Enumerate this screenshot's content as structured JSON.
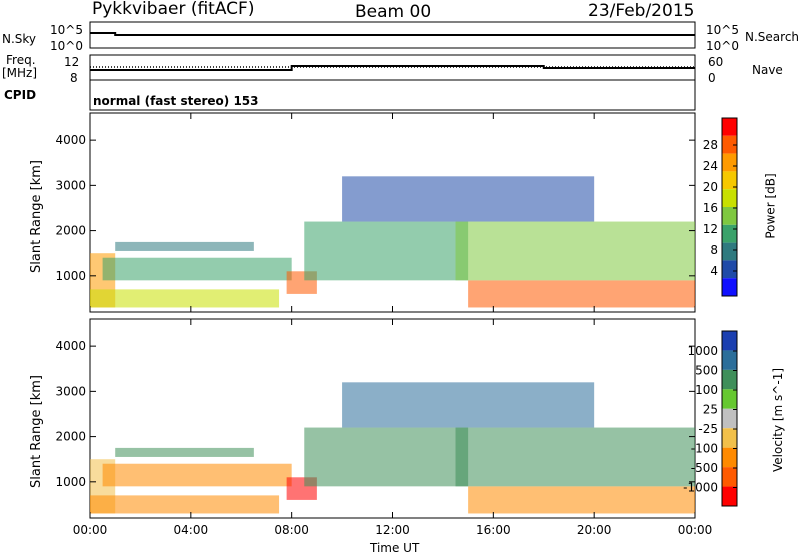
{
  "header": {
    "station": "Pykkvibaer (fitACF)",
    "beam": "Beam 00",
    "date": "23/Feb/2015"
  },
  "panels": {
    "nsky_label": "N.Sky",
    "nsky_ticks": [
      "10^5",
      "10^0"
    ],
    "nsearch_label": "N.Search",
    "nsearch_ticks": [
      "10^5",
      "10^0"
    ],
    "freq_label_1": "Freq.",
    "freq_label_2": "[MHz]",
    "freq_ticks": [
      "12",
      "8"
    ],
    "nave_label": "Nave",
    "nave_ticks": [
      "60",
      "0"
    ],
    "cpid_label": "CPID",
    "cpid_text": "normal (fast stereo) 153"
  },
  "power_colorbar": {
    "label": "Power [dB]",
    "ticks": [
      "28",
      "24",
      "20",
      "16",
      "12",
      "8",
      "4"
    ],
    "colors": [
      "#ff0000",
      "#ff5a00",
      "#ff9a00",
      "#f6c800",
      "#c8e000",
      "#7fc840",
      "#3aa26a",
      "#2f7a7f",
      "#1f4aa8",
      "#1010ff"
    ]
  },
  "velocity_colorbar": {
    "label": "Velocity [m s^-1]",
    "ticks": [
      "1000",
      "500",
      "100",
      "25",
      "-25",
      "-100",
      "-500",
      "-1000"
    ],
    "colors": [
      "#1b3fb0",
      "#2b6e9a",
      "#3f8f5a",
      "#66c830",
      "#c0c0c0",
      "#f2c04a",
      "#ff8a00",
      "#ff5a00",
      "#ff0000"
    ]
  },
  "chart_data": {
    "type": "heatmap",
    "xlabel": "Time UT",
    "ylabel": "Slant Range [km]",
    "x_ticks": [
      "00:00",
      "04:00",
      "08:00",
      "12:00",
      "16:00",
      "20:00",
      "00:00"
    ],
    "y_ticks": [
      "1000",
      "2000",
      "3000",
      "4000"
    ],
    "ylim": [
      200,
      4600
    ],
    "xlim_hours": [
      0,
      24
    ],
    "frequency_mhz": [
      {
        "start": 0,
        "end": 8,
        "value": 10.0
      },
      {
        "start": 8,
        "end": 18,
        "value": 11.0
      },
      {
        "start": 18,
        "end": 24,
        "value": 10.5
      }
    ],
    "echo_regions": [
      {
        "t0": 0.0,
        "t1": 1.0,
        "r0": 300,
        "r1": 1500,
        "power_db": 24,
        "velocity": -25
      },
      {
        "t0": 0.0,
        "t1": 7.5,
        "r0": 300,
        "r1": 700,
        "power_db": 18,
        "velocity": -100
      },
      {
        "t0": 0.5,
        "t1": 8.0,
        "r0": 900,
        "r1": 1400,
        "power_db": 12,
        "velocity": -100
      },
      {
        "t0": 1.0,
        "t1": 6.5,
        "r0": 1550,
        "r1": 1750,
        "power_db": 8,
        "velocity": 25
      },
      {
        "t0": 7.8,
        "t1": 9.0,
        "r0": 600,
        "r1": 1100,
        "power_db": 26,
        "velocity": -500
      },
      {
        "t0": 8.5,
        "t1": 15.0,
        "r0": 900,
        "r1": 2200,
        "power_db": 12,
        "velocity": 25
      },
      {
        "t0": 15.0,
        "t1": 24.0,
        "r0": 300,
        "r1": 900,
        "power_db": 28,
        "velocity": -100
      },
      {
        "t0": 14.5,
        "t1": 24.0,
        "r0": 900,
        "r1": 2200,
        "power_db": 16,
        "velocity": 25
      },
      {
        "t0": 10.0,
        "t1": 20.0,
        "r0": 2200,
        "r1": 3200,
        "power_db": 6,
        "velocity": 100
      }
    ]
  }
}
